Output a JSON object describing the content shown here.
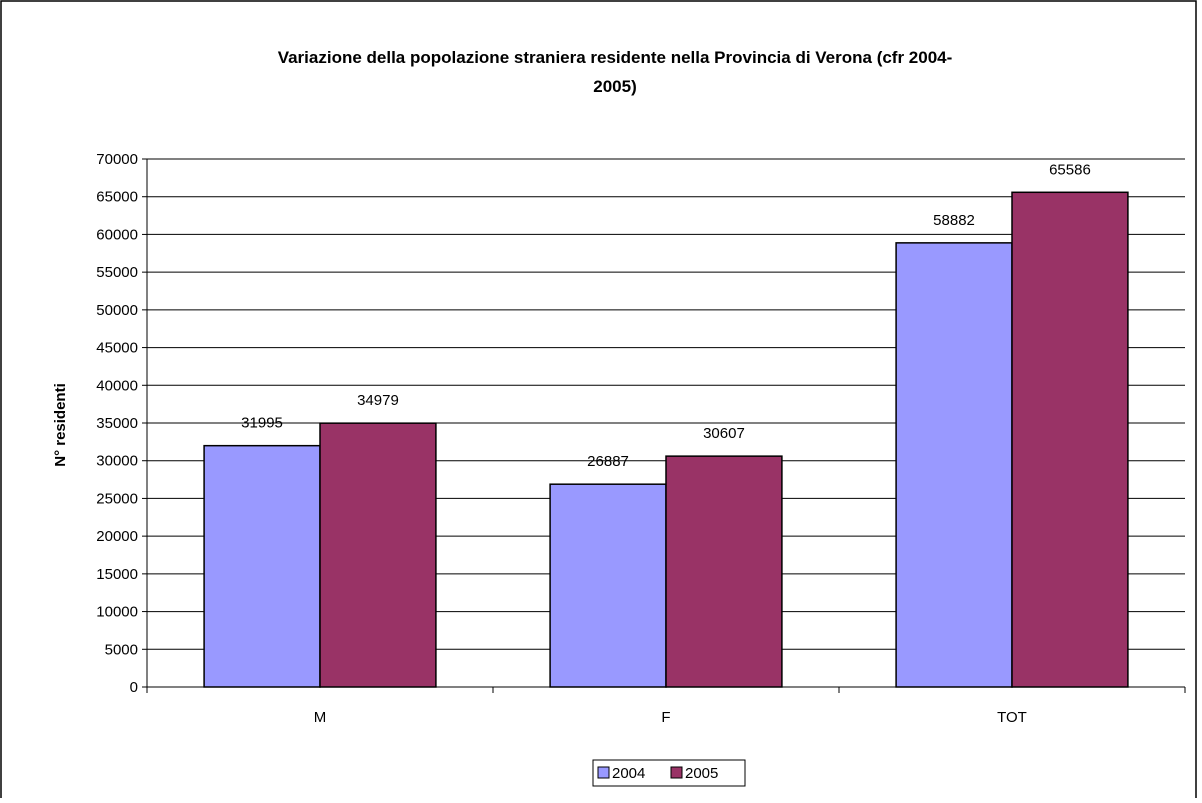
{
  "chart_data": {
    "type": "bar",
    "title_lines": [
      "Variazione della popolazione straniera residente nella Provincia di Verona (cfr 2004-",
      "2005)"
    ],
    "ylabel": "N° residenti",
    "xlabel": "",
    "categories": [
      "M",
      "F",
      "TOT"
    ],
    "series": [
      {
        "name": "2004",
        "color": "#9999ff",
        "values": [
          31995,
          26887,
          58882
        ]
      },
      {
        "name": "2005",
        "color": "#993366",
        "values": [
          34979,
          30607,
          65586
        ]
      }
    ],
    "ylim": [
      0,
      70000
    ],
    "ytick_step": 5000,
    "yticks": [
      "0",
      "5000",
      "10000",
      "15000",
      "20000",
      "25000",
      "30000",
      "35000",
      "40000",
      "45000",
      "50000",
      "55000",
      "60000",
      "65000",
      "70000"
    ],
    "grid": true,
    "legend_position": "bottom-center",
    "data_labels": true
  }
}
